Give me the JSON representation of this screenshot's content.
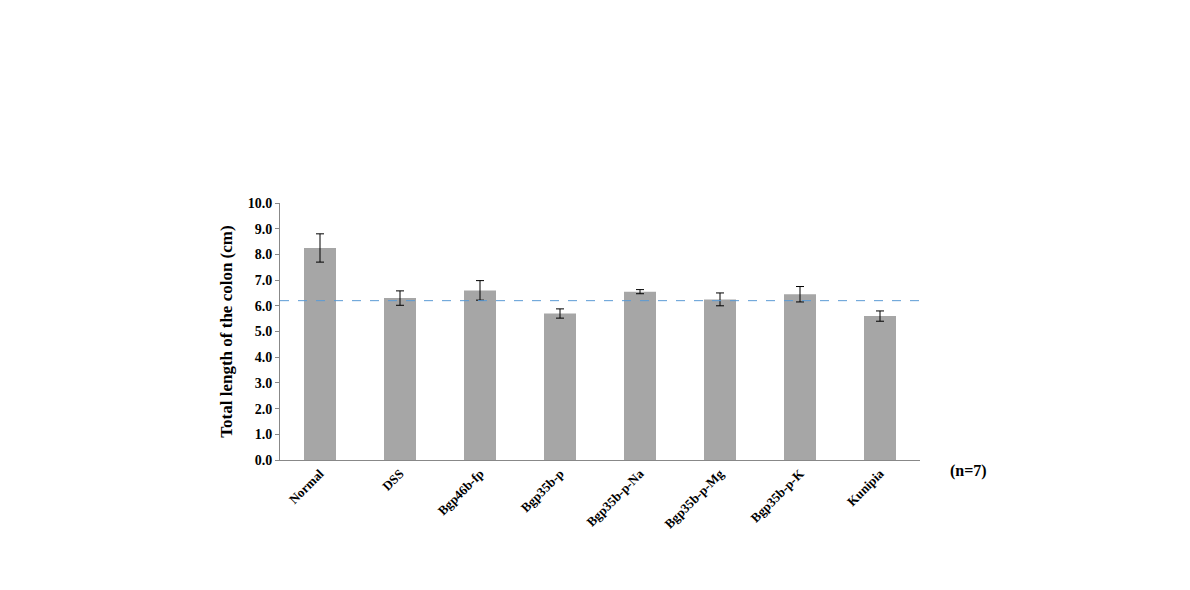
{
  "chart_data": {
    "type": "bar",
    "y_label": "Total length of the colon (cm)",
    "categories": [
      "Normal",
      "DSS",
      "Bgp46b-fp",
      "Bgp35b-p",
      "Bgp35b-p-Na",
      "Bgp35b-p-Mg",
      "Bgp35b-p-K",
      "Kunipia"
    ],
    "values": [
      8.25,
      6.3,
      6.6,
      5.7,
      6.55,
      6.25,
      6.45,
      5.6
    ],
    "errors": [
      0.55,
      0.28,
      0.38,
      0.18,
      0.08,
      0.25,
      0.3,
      0.2
    ],
    "color": "#a6a6a6",
    "reference_line": 6.2,
    "annotations": [
      "(n=7)"
    ],
    "ylim": [
      0,
      10
    ],
    "yticks": [
      {
        "value": 0,
        "label": "0.0"
      },
      {
        "value": 1,
        "label": "1.0"
      },
      {
        "value": 2,
        "label": "2.0"
      },
      {
        "value": 3,
        "label": "3.0"
      },
      {
        "value": 4,
        "label": "4.0"
      },
      {
        "value": 5,
        "label": "5.0"
      },
      {
        "value": 6,
        "label": "6.0"
      },
      {
        "value": 7,
        "label": "7.0"
      },
      {
        "value": 8,
        "label": "8.0"
      },
      {
        "value": 9,
        "label": "9.0"
      },
      {
        "value": 10,
        "label": "10.0"
      }
    ],
    "grid": false
  }
}
